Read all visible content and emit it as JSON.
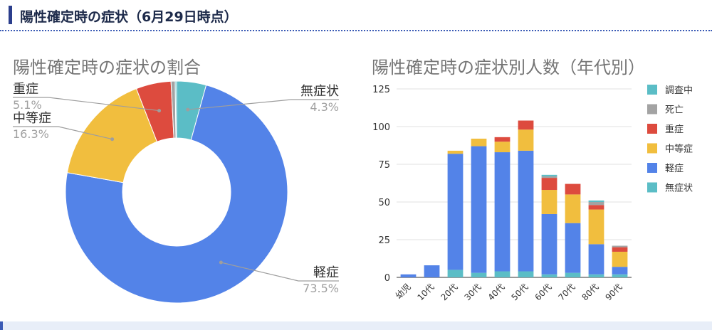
{
  "header": {
    "title": "陽性確定時の症状（6月29日時点）"
  },
  "colors": {
    "asymptomatic": "#5bbdc6",
    "mild": "#5383e8",
    "moderate": "#f1be3e",
    "severe": "#dd4b3e",
    "death": "#a3a3a3",
    "investigating": "#5bbdc6"
  },
  "chart_data": [
    {
      "type": "pie",
      "title": "陽性確定時の症状の割合",
      "slices": [
        {
          "label": "無症状",
          "value": 4.3,
          "percent_text": "4.3%",
          "color": "#5bbdc6"
        },
        {
          "label": "軽症",
          "value": 73.5,
          "percent_text": "73.5%",
          "color": "#5383e8"
        },
        {
          "label": "中等症",
          "value": 16.3,
          "percent_text": "16.3%",
          "color": "#f1be3e"
        },
        {
          "label": "重症",
          "value": 5.1,
          "percent_text": "5.1%",
          "color": "#dd4b3e"
        },
        {
          "label": "死亡",
          "value": 0.6,
          "percent_text": "",
          "color": "#a3a3a3"
        },
        {
          "label": "調査中",
          "value": 0.2,
          "percent_text": "",
          "color": "#5bbdc6"
        }
      ]
    },
    {
      "type": "bar",
      "stacked": true,
      "title": "陽性確定時の症状別人数（年代別）",
      "categories": [
        "幼児",
        "10代",
        "20代",
        "30代",
        "40代",
        "50代",
        "60代",
        "70代",
        "80代",
        "90代"
      ],
      "ylim": [
        0,
        125
      ],
      "yticks": [
        0,
        25,
        50,
        75,
        100,
        125
      ],
      "grid": true,
      "legend_position": "right",
      "series": [
        {
          "name": "無症状",
          "color": "#5bbdc6",
          "values": [
            0,
            0,
            5,
            3,
            4,
            4,
            2,
            3,
            2,
            2
          ]
        },
        {
          "name": "軽症",
          "color": "#5383e8",
          "values": [
            2,
            8,
            77,
            84,
            79,
            80,
            40,
            33,
            20,
            5
          ]
        },
        {
          "name": "中等症",
          "color": "#f1be3e",
          "values": [
            0,
            0,
            2,
            5,
            7,
            14,
            16,
            19,
            23,
            10
          ]
        },
        {
          "name": "重症",
          "color": "#dd4b3e",
          "values": [
            0,
            0,
            0,
            0,
            3,
            6,
            8,
            7,
            3,
            3
          ]
        },
        {
          "name": "死亡",
          "color": "#a3a3a3",
          "values": [
            0,
            0,
            0,
            0,
            0,
            0,
            1,
            0,
            2,
            1
          ]
        },
        {
          "name": "調査中",
          "color": "#5bbdc6",
          "values": [
            0,
            0,
            0,
            0,
            0,
            0,
            1,
            0,
            1,
            0
          ]
        }
      ],
      "legend": [
        "調査中",
        "死亡",
        "重症",
        "中等症",
        "軽症",
        "無症状"
      ]
    }
  ]
}
